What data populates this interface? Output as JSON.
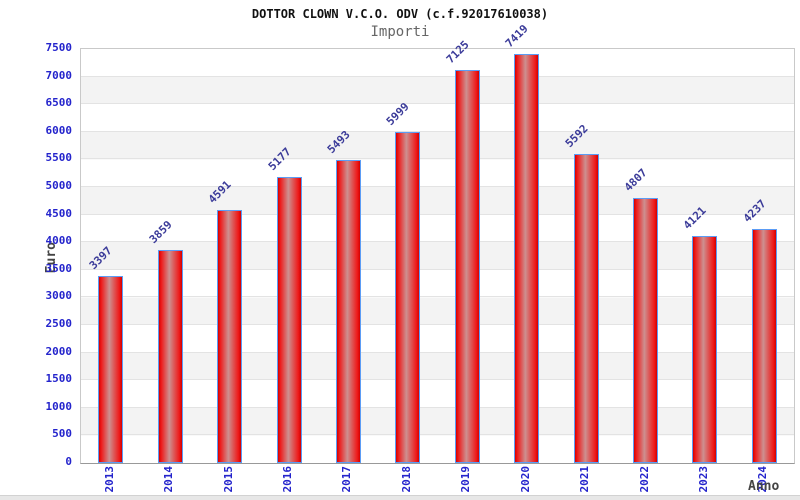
{
  "chart_data": {
    "type": "bar",
    "title": "DOTTOR CLOWN V.C.O. ODV (c.f.92017610038)",
    "subtitle": "Importi",
    "xlabel": "Anno",
    "ylabel": "Euro",
    "categories": [
      "2013",
      "2014",
      "2015",
      "2016",
      "2017",
      "2018",
      "2019",
      "2020",
      "2021",
      "2022",
      "2023",
      "2024"
    ],
    "values": [
      3397,
      3859,
      4591,
      5177,
      5493,
      5999,
      7125,
      7419,
      5592,
      4807,
      4121,
      4237
    ],
    "ylim": [
      0,
      7500
    ],
    "ytick_step": 500,
    "grid": "horizontal-bands",
    "legend": "none",
    "colors": {
      "bar_fill_edge": "#d40000",
      "bar_fill_bright": "#ee1a1a",
      "bar_fill_mid": "#cd9090",
      "bar_border": "#5b9cf5",
      "axis_tick_label": "#2424cc",
      "value_label": "#3b3b99",
      "band_gray": "#f3f3f3",
      "gridline": "#e3e3e3",
      "axis_text": "#444444",
      "title_color": "#111111",
      "subtitle_color": "#666666"
    }
  }
}
